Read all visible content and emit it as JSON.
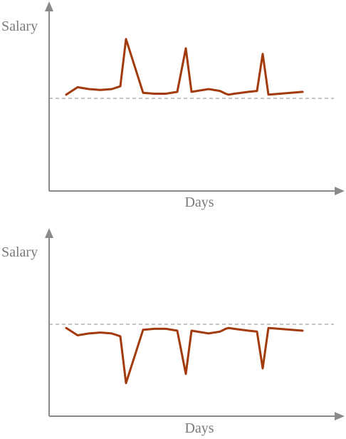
{
  "chart_data": [
    {
      "type": "line",
      "ylabel": "Salary",
      "xlabel": "Days",
      "xlim": [
        0,
        100
      ],
      "ylim": [
        0,
        100
      ],
      "baseline": 50,
      "grid": false,
      "series_color": "#a33a0c",
      "axis_color": "#8a8a8a",
      "series": [
        {
          "x": [
            6,
            10,
            14,
            18,
            22,
            25,
            27,
            33,
            37,
            41,
            45,
            48,
            50,
            56,
            60,
            62,
            63,
            65,
            70,
            73,
            75,
            77,
            89
          ],
          "y": [
            52,
            56,
            55,
            54.5,
            55,
            56.5,
            82,
            53,
            52.5,
            52.5,
            53.5,
            77,
            53.5,
            55,
            54,
            52.5,
            52,
            52.5,
            53.5,
            54,
            74,
            52,
            53.5
          ]
        }
      ]
    },
    {
      "type": "line",
      "ylabel": "Salary",
      "xlabel": "Days",
      "xlim": [
        0,
        100
      ],
      "ylim": [
        0,
        100
      ],
      "baseline": 50,
      "grid": false,
      "series_color": "#a33a0c",
      "axis_color": "#8a8a8a",
      "series": [
        {
          "x": [
            6,
            10,
            14,
            18,
            22,
            25,
            27,
            33,
            37,
            41,
            45,
            48,
            50,
            56,
            60,
            62,
            63,
            65,
            70,
            73,
            75,
            77,
            89
          ],
          "y": [
            48,
            44,
            45,
            45.5,
            45,
            43.5,
            18,
            47,
            47.5,
            47.5,
            46.5,
            23,
            46.5,
            45,
            46,
            47.5,
            48,
            47.5,
            46.5,
            46,
            26,
            48,
            46.5
          ]
        }
      ]
    }
  ]
}
